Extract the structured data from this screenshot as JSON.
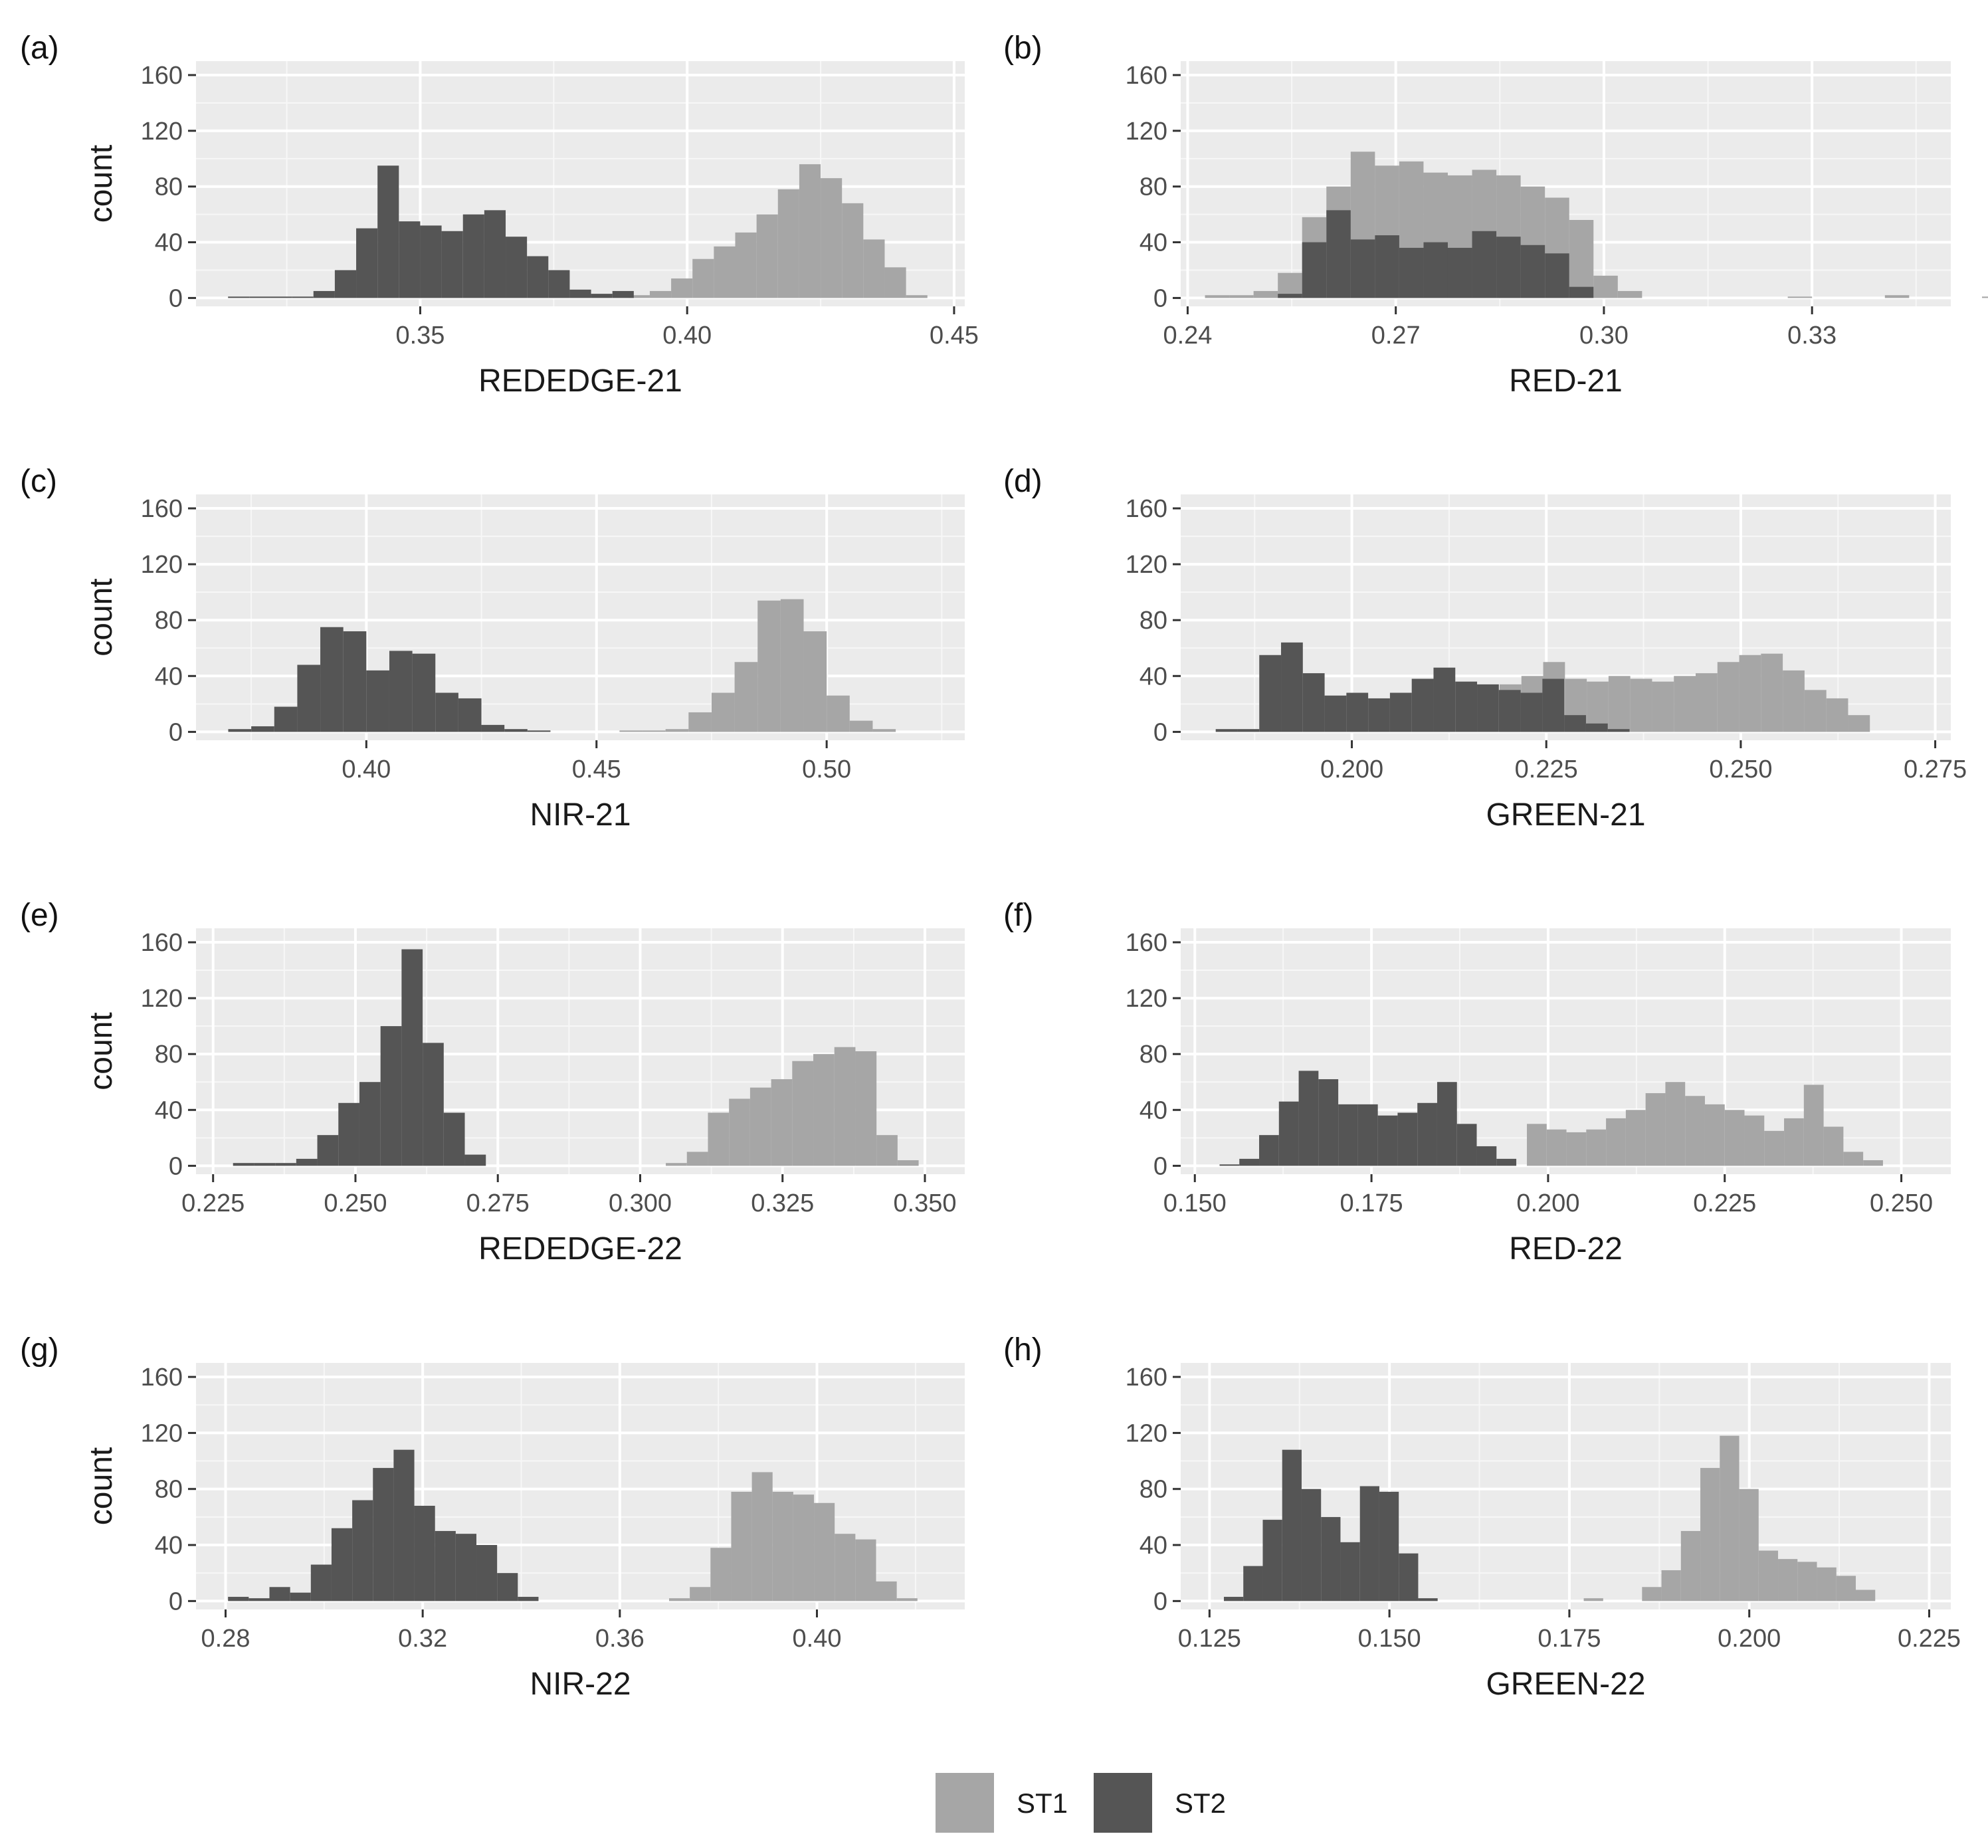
{
  "chart_data": {
    "type": "histogram-grid",
    "legend": {
      "position": "bottom-center",
      "entries": [
        {
          "name": "ST1",
          "color": "#a6a6a6"
        },
        {
          "name": "ST2",
          "color": "#555555"
        }
      ]
    },
    "panels": [
      {
        "id": "a",
        "label": "(a)",
        "xlabel": "REDEDGE-21",
        "ylabel": "count",
        "xlim": [
          0.308,
          0.452
        ],
        "ylim": [
          -6,
          170
        ],
        "xticks": [
          0.35,
          0.4,
          0.45
        ],
        "xtick_labels": [
          "0.35",
          "0.40",
          "0.45"
        ],
        "yticks": [
          0,
          40,
          80,
          120,
          160
        ],
        "ytick_labels": [
          "0",
          "40",
          "80",
          "120",
          "160"
        ],
        "series": [
          {
            "name": "ST1",
            "start": 0.389,
            "binwidth": 0.004,
            "counts": [
              2,
              5,
              14,
              28,
              37,
              47,
              60,
              78,
              96,
              86,
              68,
              42,
              22,
              2
            ]
          },
          {
            "name": "ST2",
            "start": 0.314,
            "binwidth": 0.004,
            "counts": [
              1,
              1,
              1,
              1,
              5,
              20,
              50,
              95,
              55,
              52,
              48,
              60,
              63,
              44,
              30,
              20,
              6,
              3,
              5
            ]
          }
        ]
      },
      {
        "id": "b",
        "label": "(b)",
        "xlabel": "RED-21",
        "ylabel": "",
        "xlim": [
          0.239,
          0.35
        ],
        "ylim": [
          -6,
          170
        ],
        "xticks": [
          0.24,
          0.27,
          0.3,
          0.33
        ],
        "xtick_labels": [
          "0.24",
          "0.27",
          "0.30",
          "0.33"
        ],
        "yticks": [
          0,
          40,
          80,
          120,
          160
        ],
        "ytick_labels": [
          "0",
          "40",
          "80",
          "120",
          "160"
        ],
        "series": [
          {
            "name": "ST1",
            "start": 0.2425,
            "binwidth": 0.0035,
            "counts": [
              2,
              2,
              5,
              18,
              58,
              80,
              105,
              95,
              98,
              90,
              88,
              92,
              88,
              80,
              72,
              56,
              16,
              5,
              0,
              0,
              0,
              0,
              0,
              0,
              1,
              0,
              0,
              0,
              2,
              0,
              0,
              0,
              1
            ]
          },
          {
            "name": "ST2",
            "start": 0.253,
            "binwidth": 0.0035,
            "counts": [
              3,
              40,
              63,
              42,
              45,
              36,
              40,
              36,
              48,
              44,
              38,
              32,
              8
            ]
          }
        ]
      },
      {
        "id": "c",
        "label": "(c)",
        "xlabel": "NIR-21",
        "ylabel": "count",
        "xlim": [
          0.363,
          0.53
        ],
        "ylim": [
          -6,
          170
        ],
        "xticks": [
          0.4,
          0.45,
          0.5
        ],
        "xtick_labels": [
          "0.40",
          "0.45",
          "0.50"
        ],
        "yticks": [
          0,
          40,
          80,
          120,
          160
        ],
        "ytick_labels": [
          "0",
          "40",
          "80",
          "120",
          "160"
        ],
        "series": [
          {
            "name": "ST1",
            "start": 0.455,
            "binwidth": 0.005,
            "counts": [
              1,
              1,
              2,
              14,
              28,
              50,
              94,
              95,
              72,
              26,
              8,
              2
            ]
          },
          {
            "name": "ST2",
            "start": 0.37,
            "binwidth": 0.005,
            "counts": [
              2,
              4,
              18,
              48,
              75,
              72,
              44,
              58,
              56,
              28,
              24,
              5,
              2,
              1
            ]
          }
        ]
      },
      {
        "id": "d",
        "label": "(d)",
        "xlabel": "GREEN-21",
        "ylabel": "",
        "xlim": [
          0.178,
          0.277
        ],
        "ylim": [
          -6,
          170
        ],
        "xticks": [
          0.2,
          0.225,
          0.25,
          0.275
        ],
        "xtick_labels": [
          "0.200",
          "0.225",
          "0.250",
          "0.275"
        ],
        "yticks": [
          0,
          40,
          80,
          120,
          160
        ],
        "ytick_labels": [
          "0",
          "40",
          "80",
          "120",
          "160"
        ],
        "series": [
          {
            "name": "ST1",
            "start": 0.219,
            "binwidth": 0.0028,
            "counts": [
              34,
              40,
              50,
              38,
              36,
              40,
              38,
              36,
              40,
              42,
              50,
              55,
              56,
              44,
              30,
              24,
              12
            ]
          },
          {
            "name": "ST2",
            "start": 0.1825,
            "binwidth": 0.0028,
            "counts": [
              2,
              2,
              55,
              64,
              42,
              26,
              28,
              24,
              28,
              38,
              46,
              36,
              34,
              30,
              28,
              38,
              12,
              6,
              2
            ]
          }
        ]
      },
      {
        "id": "e",
        "label": "(e)",
        "xlabel": "REDEDGE-22",
        "ylabel": "count",
        "xlim": [
          0.222,
          0.357
        ],
        "ylim": [
          -6,
          170
        ],
        "xticks": [
          0.225,
          0.25,
          0.275,
          0.3,
          0.325,
          0.35
        ],
        "xtick_labels": [
          "0.225",
          "0.250",
          "0.275",
          "0.300",
          "0.325",
          "0.350"
        ],
        "yticks": [
          0,
          40,
          80,
          120,
          160
        ],
        "ytick_labels": [
          "0",
          "40",
          "80",
          "120",
          "160"
        ],
        "series": [
          {
            "name": "ST1",
            "start": 0.3045,
            "binwidth": 0.0037,
            "counts": [
              2,
              10,
              38,
              48,
              56,
              62,
              75,
              80,
              85,
              82,
              22,
              4
            ]
          },
          {
            "name": "ST2",
            "start": 0.2285,
            "binwidth": 0.0037,
            "counts": [
              2,
              2,
              2,
              5,
              22,
              45,
              60,
              100,
              155,
              88,
              38,
              8
            ]
          }
        ]
      },
      {
        "id": "f",
        "label": "(f)",
        "xlabel": "RED-22",
        "ylabel": "",
        "xlim": [
          0.148,
          0.257
        ],
        "ylim": [
          -6,
          170
        ],
        "xticks": [
          0.15,
          0.175,
          0.2,
          0.225,
          0.25
        ],
        "xtick_labels": [
          "0.150",
          "0.175",
          "0.200",
          "0.225",
          "0.250"
        ],
        "yticks": [
          0,
          40,
          80,
          120,
          160
        ],
        "ytick_labels": [
          "0",
          "40",
          "80",
          "120",
          "160"
        ],
        "series": [
          {
            "name": "ST1",
            "start": 0.197,
            "binwidth": 0.0028,
            "counts": [
              30,
              26,
              24,
              26,
              34,
              40,
              52,
              60,
              50,
              44,
              40,
              36,
              25,
              34,
              58,
              28,
              10,
              4
            ]
          },
          {
            "name": "ST2",
            "start": 0.1535,
            "binwidth": 0.0028,
            "counts": [
              1,
              5,
              22,
              46,
              68,
              62,
              44,
              44,
              36,
              38,
              45,
              60,
              30,
              14,
              5
            ]
          }
        ]
      },
      {
        "id": "g",
        "label": "(g)",
        "xlabel": "NIR-22",
        "ylabel": "count",
        "xlim": [
          0.274,
          0.43
        ],
        "ylim": [
          -6,
          170
        ],
        "xticks": [
          0.28,
          0.32,
          0.36,
          0.4
        ],
        "xtick_labels": [
          "0.28",
          "0.32",
          "0.36",
          "0.40"
        ],
        "yticks": [
          0,
          40,
          80,
          120,
          160
        ],
        "ytick_labels": [
          "0",
          "40",
          "80",
          "120",
          "160"
        ],
        "series": [
          {
            "name": "ST1",
            "start": 0.37,
            "binwidth": 0.0042,
            "counts": [
              2,
              10,
              38,
              78,
              92,
              78,
              76,
              70,
              48,
              44,
              14,
              2
            ]
          },
          {
            "name": "ST2",
            "start": 0.2805,
            "binwidth": 0.0042,
            "counts": [
              3,
              2,
              10,
              6,
              26,
              52,
              72,
              95,
              108,
              68,
              50,
              48,
              40,
              20,
              3
            ]
          }
        ]
      },
      {
        "id": "h",
        "label": "(h)",
        "xlabel": "GREEN-22",
        "ylabel": "",
        "xlim": [
          0.121,
          0.228
        ],
        "ylim": [
          -6,
          170
        ],
        "xticks": [
          0.125,
          0.15,
          0.175,
          0.2,
          0.225
        ],
        "xtick_labels": [
          "0.125",
          "0.150",
          "0.175",
          "0.200",
          "0.225"
        ],
        "yticks": [
          0,
          40,
          80,
          120,
          160
        ],
        "ytick_labels": [
          "0",
          "40",
          "80",
          "120",
          "160"
        ],
        "series": [
          {
            "name": "ST1",
            "start": 0.177,
            "binwidth": 0.0027,
            "counts": [
              2,
              0,
              0,
              10,
              22,
              50,
              95,
              118,
              80,
              36,
              30,
              28,
              24,
              18,
              8
            ]
          },
          {
            "name": "ST2",
            "start": 0.127,
            "binwidth": 0.0027,
            "counts": [
              3,
              25,
              58,
              108,
              80,
              60,
              42,
              82,
              78,
              34,
              2
            ]
          }
        ]
      }
    ]
  }
}
